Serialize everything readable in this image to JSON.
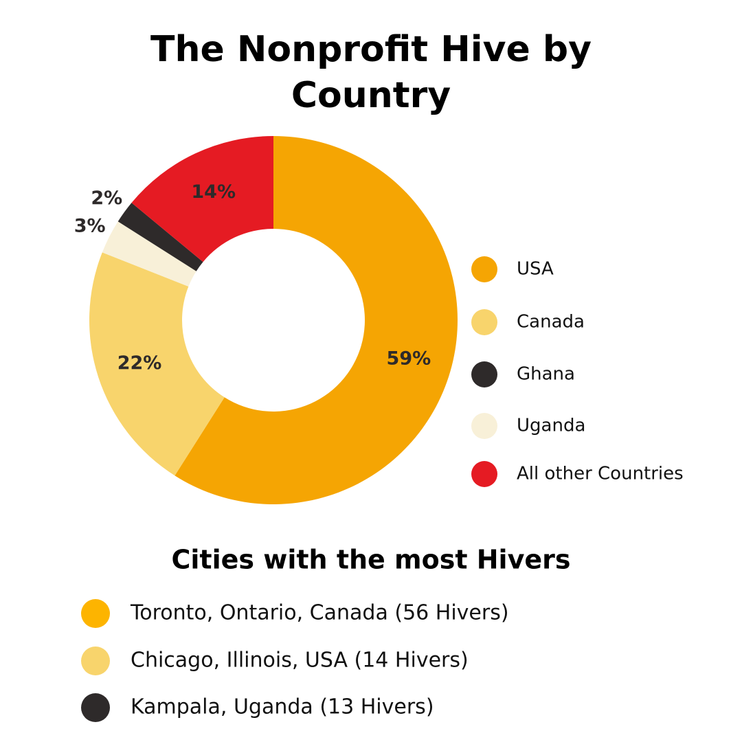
{
  "chart_data": {
    "type": "donut",
    "title": "The Nonprofit Hive by Country",
    "categories": [
      "USA",
      "Canada",
      "Uganda",
      "Ghana",
      "All other Countries"
    ],
    "values": [
      59,
      22,
      3,
      2,
      14
    ],
    "value_labels": [
      "59%",
      "22%",
      "3%",
      "2%",
      "14%"
    ],
    "colors": [
      "#f5a503",
      "#f8d46c",
      "#f8f0d8",
      "#2e2a2a",
      "#e51b23"
    ]
  },
  "cities": {
    "title": "Cities with the most Hivers",
    "items": [
      {
        "label": "Toronto, Ontario, Canada (56 Hivers)",
        "color": "#fdb400"
      },
      {
        "label": "Chicago, Illinois, USA (14 Hivers)",
        "color": "#f8d46c"
      },
      {
        "label": "Kampala, Uganda (13 Hivers)",
        "color": "#2e2a2a"
      }
    ]
  }
}
